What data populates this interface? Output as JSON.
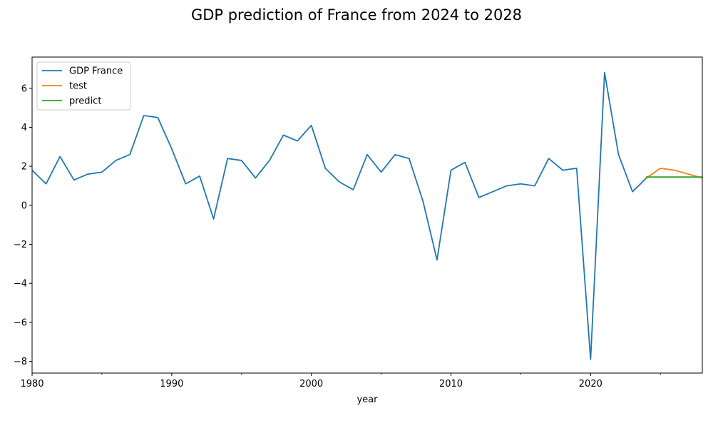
{
  "chart_data": {
    "type": "line",
    "title": "GDP prediction of France from 2024 to 2028",
    "xlabel": "year",
    "ylabel": "",
    "xlim": [
      1980,
      2028
    ],
    "ylim": [
      -8.6,
      7.6
    ],
    "x_ticks": [
      1980,
      1990,
      2000,
      2010,
      2020
    ],
    "x_minor_ticks": [
      1985,
      1995,
      2005,
      2015,
      2025
    ],
    "y_ticks": [
      6,
      4,
      2,
      0,
      -2,
      -4,
      -6,
      -8
    ],
    "y_tick_labels": [
      "6",
      "4",
      "2",
      "0",
      "−2",
      "−4",
      "−6",
      "−8"
    ],
    "grid": false,
    "legend_position": "top-left",
    "series": [
      {
        "name": "GDP France",
        "color": "#1f77b4",
        "x": [
          1980,
          1981,
          1982,
          1983,
          1984,
          1985,
          1986,
          1987,
          1988,
          1989,
          1990,
          1991,
          1992,
          1993,
          1994,
          1995,
          1996,
          1997,
          1998,
          1999,
          2000,
          2001,
          2002,
          2003,
          2004,
          2005,
          2006,
          2007,
          2008,
          2009,
          2010,
          2011,
          2012,
          2013,
          2014,
          2015,
          2016,
          2017,
          2018,
          2019,
          2020,
          2021,
          2022,
          2023,
          2024
        ],
        "values": [
          1.8,
          1.1,
          2.5,
          1.3,
          1.6,
          1.7,
          2.3,
          2.6,
          4.6,
          4.5,
          2.9,
          1.1,
          1.5,
          -0.7,
          2.4,
          2.3,
          1.4,
          2.3,
          3.6,
          3.3,
          4.1,
          1.9,
          1.2,
          0.8,
          2.6,
          1.7,
          2.6,
          2.4,
          0.2,
          -2.8,
          1.8,
          2.2,
          0.4,
          0.7,
          1.0,
          1.1,
          1.0,
          2.4,
          1.8,
          1.9,
          -7.9,
          6.8,
          2.6,
          0.7,
          1.4
        ]
      },
      {
        "name": "test",
        "color": "#ff7f0e",
        "x": [
          2024,
          2025,
          2026,
          2027,
          2028
        ],
        "values": [
          1.4,
          1.9,
          1.8,
          1.6,
          1.4
        ]
      },
      {
        "name": "predict",
        "color": "#2ca02c",
        "x": [
          2024,
          2025,
          2026,
          2027,
          2028
        ],
        "values": [
          1.45,
          1.45,
          1.45,
          1.45,
          1.45
        ]
      }
    ]
  }
}
